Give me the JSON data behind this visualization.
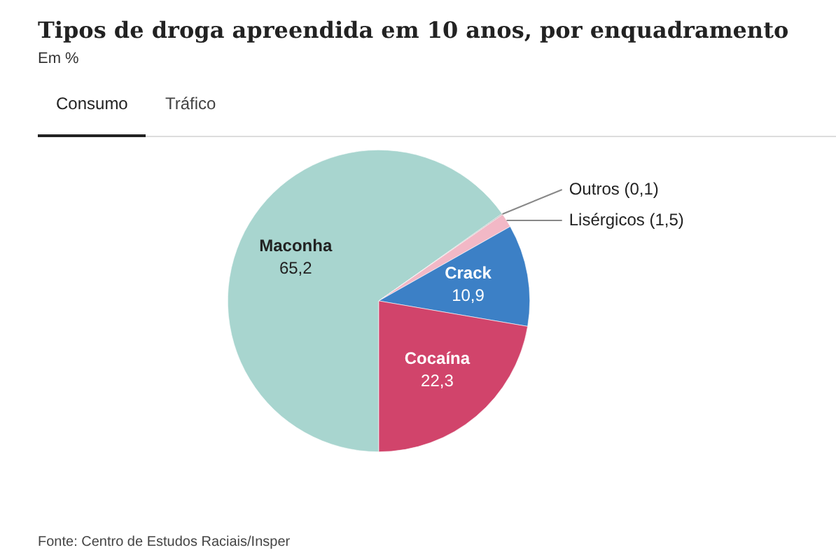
{
  "chart_data": {
    "type": "pie",
    "title": "Tipos de droga apreendida em 10 anos, por enquadramento",
    "subtitle": "Em %",
    "categories": [
      "Maconha",
      "Outros",
      "Lisérgicos",
      "Crack",
      "Cocaína"
    ],
    "values": [
      65.2,
      0.1,
      1.5,
      10.9,
      22.3
    ],
    "colors": [
      "#a8d5cf",
      "#9a9a9a",
      "#f2b8c6",
      "#3c80c6",
      "#d1446b"
    ],
    "value_labels": [
      "65,2",
      "(0,1)",
      "(1,5)",
      "10,9",
      "22,3"
    ],
    "legend": false,
    "annotations": [
      "Consumo",
      "Tráfico",
      "Fonte: Centro de Estudos Raciais/Insper"
    ]
  }
}
